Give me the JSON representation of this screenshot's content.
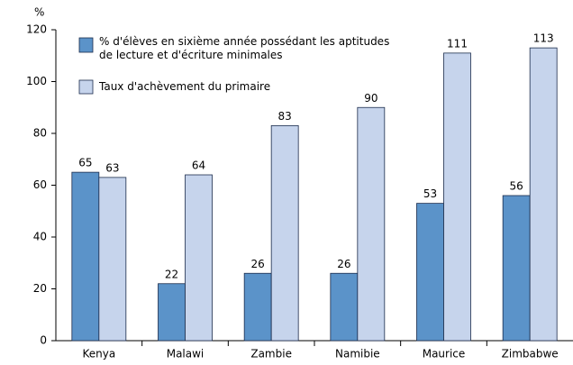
{
  "chart_data": {
    "type": "bar",
    "y_label": "%",
    "categories": [
      "Kenya",
      "Malawi",
      "Zambie",
      "Namibie",
      "Maurice",
      "Zimbabwe"
    ],
    "series": [
      {
        "name": "% d'élèves en sixième année possédant les aptitudes de lecture et d'écriture minimales",
        "color": "#5b93c9",
        "values": [
          65,
          22,
          26,
          26,
          53,
          56
        ]
      },
      {
        "name": "Taux d'achèvement du primaire",
        "color": "#c6d4ec",
        "values": [
          63,
          64,
          83,
          90,
          111,
          113
        ]
      }
    ],
    "ylim": [
      0,
      120
    ],
    "yticks": [
      0,
      20,
      40,
      60,
      80,
      100,
      120
    ],
    "grid": false,
    "legend": "upper left"
  }
}
